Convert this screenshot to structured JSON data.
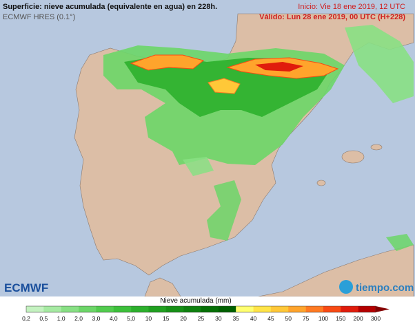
{
  "header": {
    "title": "Superficie: nieve acumulada (equivalente en agua) en 228h.",
    "model": "ECMWF HRES (0.1°)",
    "init": "Inicio: Vie 18 ene 2019, 12 UTC",
    "valid": "Válido: Lun 28 ene 2019, 00 UTC (H+228)"
  },
  "legend": {
    "title": "Nieve acumulada (mm)",
    "labels": [
      "0,2",
      "0,5",
      "1,0",
      "2,0",
      "3,0",
      "4,0",
      "5,0",
      "10",
      "15",
      "20",
      "25",
      "30",
      "35",
      "40",
      "45",
      "50",
      "75",
      "100",
      "150",
      "200",
      "300"
    ],
    "colors": [
      "#c4f2c0",
      "#a6eaa2",
      "#88e084",
      "#6cd668",
      "#52cc4e",
      "#3cc03a",
      "#2cb02c",
      "#20a020",
      "#169016",
      "#0e800e",
      "#067006",
      "#006000",
      "#ffff70",
      "#ffe448",
      "#ffc838",
      "#ffa42c",
      "#ff7a22",
      "#f84a14",
      "#e01c0c",
      "#b40000"
    ],
    "overflow_color": "#840000"
  },
  "logos": {
    "left": "ECMWF",
    "right": "tiempo.com"
  }
}
